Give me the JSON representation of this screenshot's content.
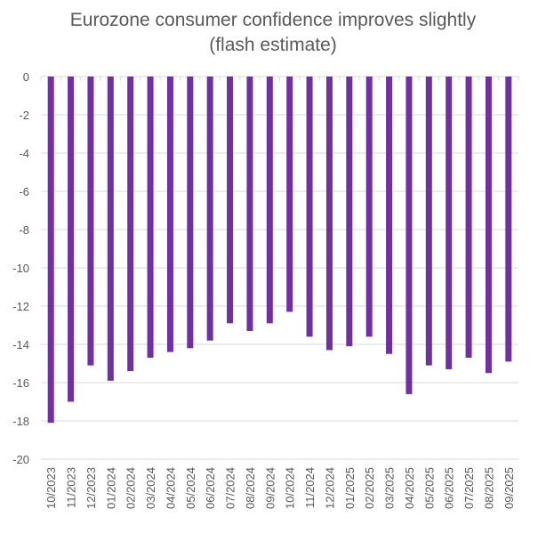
{
  "chart_data": {
    "type": "bar",
    "title": [
      "Eurozone consumer confidence improves slightly",
      "(flash estimate)"
    ],
    "xlabel": "",
    "ylabel": "",
    "ylim": [
      -20,
      0
    ],
    "yticks": [
      0,
      -2,
      -4,
      -6,
      -8,
      -10,
      -12,
      -14,
      -16,
      -18,
      -20
    ],
    "grid": true,
    "legend": "none",
    "bar_color": "#7030a0",
    "categories": [
      "10/2023",
      "11/2023",
      "12/2023",
      "01/2024",
      "02/2024",
      "03/2024",
      "04/2024",
      "05/2024",
      "06/2024",
      "07/2024",
      "08/2024",
      "09/2024",
      "10/2024",
      "11/2024",
      "12/2024",
      "01/2025",
      "02/2025",
      "03/2025",
      "04/2025",
      "05/2025",
      "06/2025",
      "07/2025",
      "08/2025",
      "09/2025"
    ],
    "values": [
      -18.1,
      -17.0,
      -15.1,
      -15.9,
      -15.4,
      -14.7,
      -14.4,
      -14.2,
      -13.8,
      -12.9,
      -13.3,
      -12.9,
      -12.3,
      -13.6,
      -14.3,
      -14.1,
      -13.6,
      -14.5,
      -16.6,
      -15.1,
      -15.3,
      -14.7,
      -15.5,
      -14.9
    ]
  }
}
